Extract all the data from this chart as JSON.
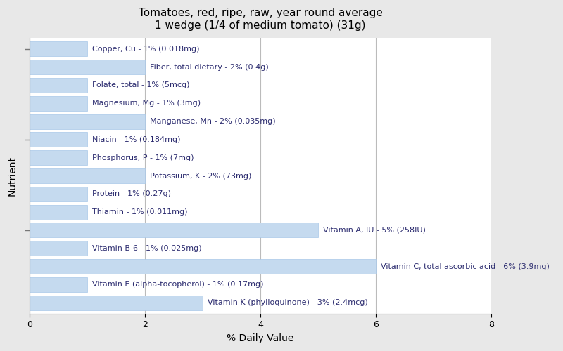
{
  "title_line1": "Tomatoes, red, ripe, raw, year round average",
  "title_line2": "1 wedge (1/4 of medium tomato) (31g)",
  "xlabel": "% Daily Value",
  "ylabel": "Nutrient",
  "nutrients": [
    "Copper, Cu - 1% (0.018mg)",
    "Fiber, total dietary - 2% (0.4g)",
    "Folate, total - 1% (5mcg)",
    "Magnesium, Mg - 1% (3mg)",
    "Manganese, Mn - 2% (0.035mg)",
    "Niacin - 1% (0.184mg)",
    "Phosphorus, P - 1% (7mg)",
    "Potassium, K - 2% (73mg)",
    "Protein - 1% (0.27g)",
    "Thiamin - 1% (0.011mg)",
    "Vitamin A, IU - 5% (258IU)",
    "Vitamin B-6 - 1% (0.025mg)",
    "Vitamin C, total ascorbic acid - 6% (3.9mg)",
    "Vitamin E (alpha-tocopherol) - 1% (0.17mg)",
    "Vitamin K (phylloquinone) - 3% (2.4mcg)"
  ],
  "values": [
    1,
    2,
    1,
    1,
    2,
    1,
    1,
    2,
    1,
    1,
    5,
    1,
    6,
    1,
    3
  ],
  "bar_color": "#c5daef",
  "bar_edge_color": "#a8c8e8",
  "background_color": "#e8e8e8",
  "plot_bg_color": "#ffffff",
  "xlim": [
    0,
    8
  ],
  "xticks": [
    0,
    2,
    4,
    6,
    8
  ],
  "title_fontsize": 11,
  "label_fontsize": 8,
  "axis_label_fontsize": 10,
  "tick_fontsize": 9,
  "ytick_positions": [
    14,
    9,
    4
  ],
  "text_color": "#2a2a6e",
  "bar_height": 0.82
}
